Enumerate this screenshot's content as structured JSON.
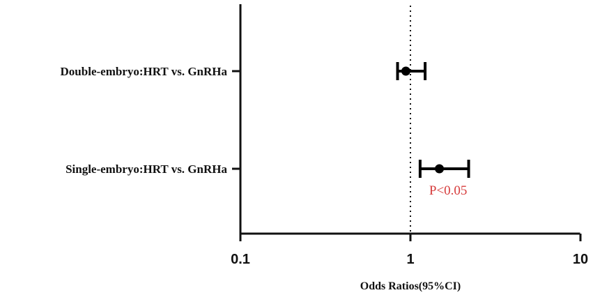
{
  "chart_data": {
    "type": "forest",
    "xscale": "log",
    "xlim": [
      0.1,
      10
    ],
    "xticks": [
      "0.1",
      "1",
      "10"
    ],
    "tick_values": [
      0.1,
      1,
      10
    ],
    "reference_line": 1,
    "xlabel": "Odds Ratios(95%CI)",
    "ylabel": "",
    "title": "",
    "grid": false,
    "colors": {
      "marker": "#000000",
      "annotation": "#d63b3b",
      "reference": "#000000"
    },
    "rows": [
      {
        "label": "Double-embryo:HRT vs. GnRHa",
        "or": 0.94,
        "ci_low": 0.84,
        "ci_high": 1.22,
        "annotation": ""
      },
      {
        "label": "Single-embryo:HRT vs. GnRHa",
        "or": 1.48,
        "ci_low": 1.14,
        "ci_high": 2.2,
        "annotation": "P<0.05"
      }
    ]
  }
}
